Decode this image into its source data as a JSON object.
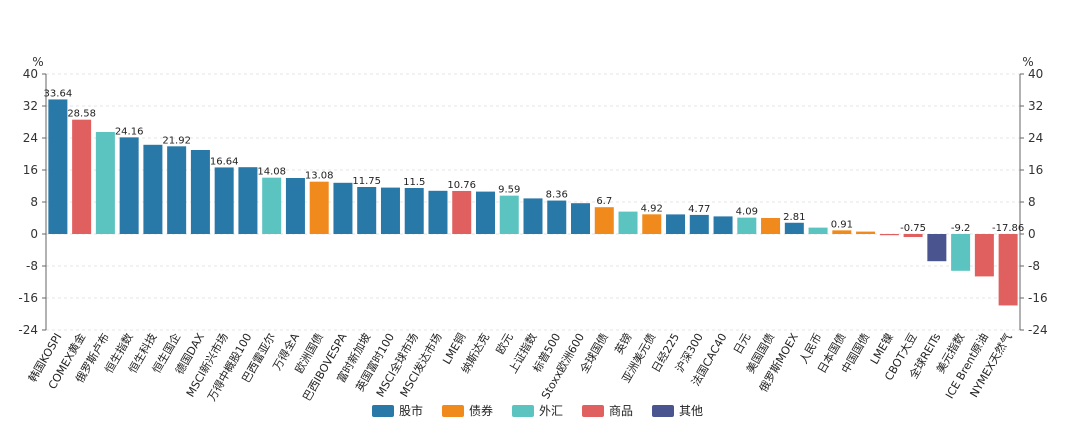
{
  "chart_data": {
    "type": "bar",
    "unit": "%",
    "ylim": [
      -24,
      40
    ],
    "yticks": [
      -24,
      -16,
      -8,
      0,
      8,
      16,
      24,
      32,
      40
    ],
    "grid": true,
    "legend_placement": "bottom-center",
    "groups": [
      {
        "key": "stock",
        "name": "股市",
        "color": "#2878a8"
      },
      {
        "key": "bond",
        "name": "债券",
        "color": "#f08a1c"
      },
      {
        "key": "fx",
        "name": "外汇",
        "color": "#5cc4c0"
      },
      {
        "key": "commodity",
        "name": "商品",
        "color": "#e06060"
      },
      {
        "key": "other",
        "name": "其他",
        "color": "#4a5590"
      }
    ],
    "categories": [
      "韩国KOSPI",
      "COMEX黄金",
      "俄罗斯卢布",
      "恒生指数",
      "恒生科技",
      "恒生国企",
      "德国DAX",
      "MSCI新兴市场",
      "万得中概股100",
      "巴西雷亚尔",
      "万得全A",
      "欧洲国债",
      "巴西IBOVESPA",
      "富时新加坡",
      "英国富时100",
      "MSCI全球市场",
      "MSCI发达市场",
      "LME铜",
      "纳斯达克",
      "欧元",
      "上证指数",
      "标普500",
      "Stoxx欧洲600",
      "全球国债",
      "英镑",
      "亚洲美元债",
      "日经225",
      "沪深300",
      "法国CAC40",
      "日元",
      "美国国债",
      "俄罗斯MOEX",
      "人民币",
      "日本国债",
      "中国国债",
      "LME镍",
      "CBOT大豆",
      "全球REITs",
      "美元指数",
      "ICE Brent原油",
      "NYMEX天然气"
    ],
    "values": [
      33.64,
      28.58,
      25.5,
      24.16,
      22.3,
      21.92,
      21.0,
      16.64,
      16.7,
      14.08,
      14.0,
      13.08,
      12.8,
      11.75,
      11.6,
      11.5,
      10.8,
      10.76,
      10.6,
      9.59,
      8.9,
      8.36,
      7.7,
      6.7,
      5.6,
      4.92,
      4.9,
      4.77,
      4.4,
      4.09,
      4.0,
      2.81,
      1.6,
      0.91,
      0.6,
      -0.3,
      -0.75,
      -6.8,
      -9.2,
      -10.6,
      -17.86
    ],
    "groups_by_category": [
      "stock",
      "commodity",
      "fx",
      "stock",
      "stock",
      "stock",
      "stock",
      "stock",
      "stock",
      "fx",
      "stock",
      "bond",
      "stock",
      "stock",
      "stock",
      "stock",
      "stock",
      "commodity",
      "stock",
      "fx",
      "stock",
      "stock",
      "stock",
      "bond",
      "fx",
      "bond",
      "stock",
      "stock",
      "stock",
      "fx",
      "bond",
      "stock",
      "fx",
      "bond",
      "bond",
      "commodity",
      "commodity",
      "other",
      "fx",
      "commodity",
      "commodity"
    ],
    "data_labels": [
      "33.64",
      "28.58",
      "",
      "24.16",
      "",
      "21.92",
      "",
      "16.64",
      "",
      "14.08",
      "",
      "13.08",
      "",
      "11.75",
      "",
      "11.5",
      "",
      "10.76",
      "",
      "9.59",
      "",
      "8.36",
      "",
      "6.7",
      "",
      "4.92",
      "",
      "4.77",
      "",
      "4.09",
      "",
      "2.81",
      "",
      "0.91",
      "",
      "",
      "-0.75",
      "",
      "-9.2",
      "",
      "-17.86"
    ]
  }
}
